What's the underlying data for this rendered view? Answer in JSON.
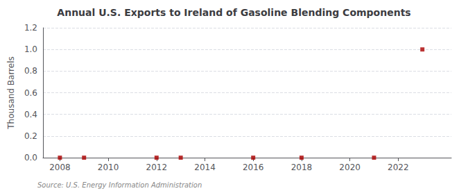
{
  "chart_data": {
    "type": "scatter",
    "title": "Annual U.S. Exports to Ireland of Gasoline Blending Components",
    "ylabel": "Thousand Barrels",
    "annotation": "Source: U.S. Energy Information Administration",
    "x": [
      2008,
      2009,
      2012,
      2013,
      2016,
      2018,
      2021,
      2023
    ],
    "values": [
      0.0,
      0.0,
      0.0,
      0.0,
      0.0,
      0.0,
      0.0,
      1.0
    ],
    "color": "#aa0000",
    "marker": "square",
    "xlim": [
      2007.3,
      2024.2
    ],
    "xticks": [
      2008,
      2010,
      2012,
      2014,
      2016,
      2018,
      2020,
      2022
    ],
    "ylim": [
      0.0,
      1.2
    ],
    "yticks": [
      {
        "value": 0.0,
        "label": "0.0"
      },
      0.2,
      0.4,
      0.6,
      0.8,
      {
        "value": 1.0,
        "label": "1.0"
      },
      1.2
    ],
    "grid": "y"
  }
}
